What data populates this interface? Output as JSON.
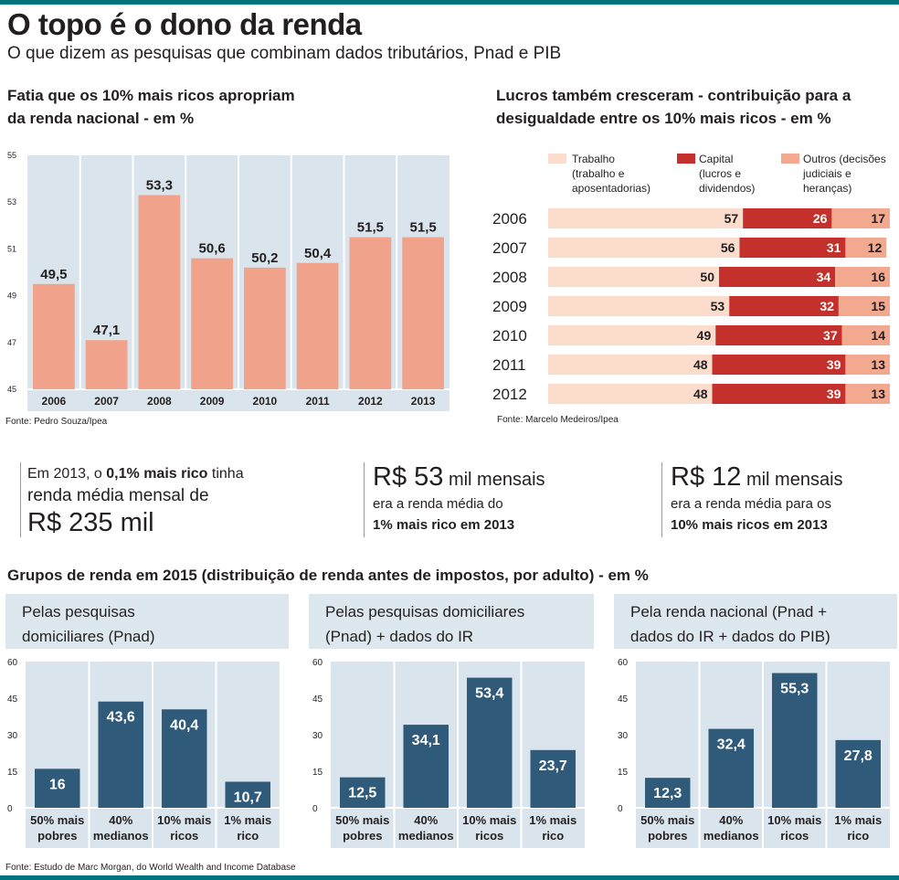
{
  "colors": {
    "accent": "#00737d",
    "bar_salmon": "#f0a28b",
    "bar_navy": "#2f5a7a",
    "trabalho": "#fbdccd",
    "capital": "#c4302b",
    "outros": "#f3a98f",
    "grid_bg": "#d9e4ec",
    "panel_hdr": "#dde8ee"
  },
  "header": {
    "title": "O topo é o dono da renda",
    "subtitle": "O que dizem as pesquisas que combinam dados tributários, Pnad e PIB"
  },
  "chart_data": [
    {
      "type": "bar",
      "title": "Fatia que os 10% mais ricos apropriam da renda nacional - em %",
      "categories": [
        "2006",
        "2007",
        "2008",
        "2009",
        "2010",
        "2011",
        "2012",
        "2013"
      ],
      "values": [
        49.5,
        47.1,
        53.3,
        50.6,
        50.2,
        50.4,
        51.5,
        51.5
      ],
      "value_labels": [
        "49,5",
        "47,1",
        "53,3",
        "50,6",
        "50,2",
        "50,4",
        "51,5",
        "51,5"
      ],
      "yticks": [
        "45",
        "47",
        "49",
        "51",
        "53",
        "55"
      ],
      "ylim": [
        45,
        55
      ],
      "source": "Fonte: Pedro Souza/Ipea"
    },
    {
      "type": "bar",
      "orientation": "horizontal-stacked",
      "title": "Lucros também cresceram - contribuição para a desigualdade entre os 10% mais ricos - em %",
      "categories": [
        "2006",
        "2007",
        "2008",
        "2009",
        "2010",
        "2011",
        "2012"
      ],
      "series": [
        {
          "name": "Trabalho",
          "legend": "Trabalho\n(trabalho e\naposentadorias)",
          "values": [
            57,
            56,
            50,
            53,
            49,
            48,
            48
          ]
        },
        {
          "name": "Capital",
          "legend": "Capital\n(lucros e\ndividendos)",
          "values": [
            26,
            31,
            34,
            32,
            37,
            39,
            39
          ]
        },
        {
          "name": "Outros",
          "legend": "Outros (decisões\njudiciais e\nheranças)",
          "values": [
            17,
            12,
            16,
            15,
            14,
            13,
            13
          ]
        }
      ],
      "source": "Fonte: Marcelo Medeiros/Ipea"
    },
    {
      "type": "bar",
      "title": "Pelas pesquisas domiciliares (Pnad)",
      "categories": [
        "50% mais pobres",
        "40% medianos",
        "10% mais ricos",
        "1% mais rico"
      ],
      "category_lines": [
        [
          "50% mais",
          "pobres"
        ],
        [
          "40%",
          "medianos"
        ],
        [
          "10% mais",
          "ricos"
        ],
        [
          "1% mais",
          "rico"
        ]
      ],
      "values": [
        16,
        43.6,
        40.4,
        10.7
      ],
      "value_labels": [
        "16",
        "43,6",
        "40,4",
        "10,7"
      ],
      "yticks": [
        "0",
        "15",
        "30",
        "45",
        "60"
      ],
      "ylim": [
        0,
        60
      ]
    },
    {
      "type": "bar",
      "title": "Pelas pesquisas domiciliares (Pnad) + dados do IR",
      "categories": [
        "50% mais pobres",
        "40% medianos",
        "10% mais ricos",
        "1% mais rico"
      ],
      "category_lines": [
        [
          "50% mais",
          "pobres"
        ],
        [
          "40%",
          "medianos"
        ],
        [
          "10% mais",
          "ricos"
        ],
        [
          "1% mais",
          "rico"
        ]
      ],
      "values": [
        12.5,
        34.1,
        53.4,
        23.7
      ],
      "value_labels": [
        "12,5",
        "34,1",
        "53,4",
        "23,7"
      ],
      "yticks": [
        "0",
        "15",
        "30",
        "45",
        "60"
      ],
      "ylim": [
        0,
        60
      ]
    },
    {
      "type": "bar",
      "title": "Pela renda nacional (Pnad + dados do IR + dados do PIB)",
      "categories": [
        "50% mais pobres",
        "40% medianos",
        "10% mais ricos",
        "1% mais rico"
      ],
      "category_lines": [
        [
          "50% mais",
          "pobres"
        ],
        [
          "40%",
          "medianos"
        ],
        [
          "10% mais",
          "ricos"
        ],
        [
          "1% mais",
          "rico"
        ]
      ],
      "values": [
        12.3,
        32.4,
        55.3,
        27.8
      ],
      "value_labels": [
        "12,3",
        "32,4",
        "55,3",
        "27,8"
      ],
      "yticks": [
        "0",
        "15",
        "30",
        "45",
        "60"
      ],
      "ylim": [
        0,
        60
      ]
    }
  ],
  "chart1": {
    "title_l1": "Fatia que os 10% mais ricos apropriam",
    "title_l2": "da renda nacional - em %",
    "source": "Fonte: Pedro Souza/Ipea"
  },
  "chart2": {
    "title_l1": "Lucros também cresceram - contribuição para a",
    "title_l2": "desigualdade entre os 10% mais ricos - em %",
    "source": "Fonte: Marcelo Medeiros/Ipea"
  },
  "stats": {
    "s1_line1_pre": "Em 2013, o ",
    "s1_line1_bold": "0,1% mais rico",
    "s1_line1_post": " tinha",
    "s1_line2": "renda média mensal de",
    "s1_big": "R$ 235 mil",
    "s2_big": "R$ 53",
    "s2_unit": " mil mensais",
    "s2_line2": "era a renda média do",
    "s2_line3": "1% mais rico em 2013",
    "s3_big": "R$ 12",
    "s3_unit": " mil mensais",
    "s3_line2": "era a renda média  para os",
    "s3_line3": "10% mais ricos em 2013"
  },
  "groups": {
    "title": "Grupos de renda em 2015 (distribuição de renda antes de impostos, por adulto) -  em %",
    "panel1_l1": "Pelas pesquisas",
    "panel1_l2": "domiciliares (Pnad)",
    "panel2_l1": "Pelas pesquisas domiciliares",
    "panel2_l2": "(Pnad) + dados do IR",
    "panel3_l1": "Pela renda nacional (Pnad +",
    "panel3_l2": "dados do IR + dados do PIB)",
    "source": "Fonte: Estudo de Marc Morgan, do World Wealth and Income Database"
  }
}
